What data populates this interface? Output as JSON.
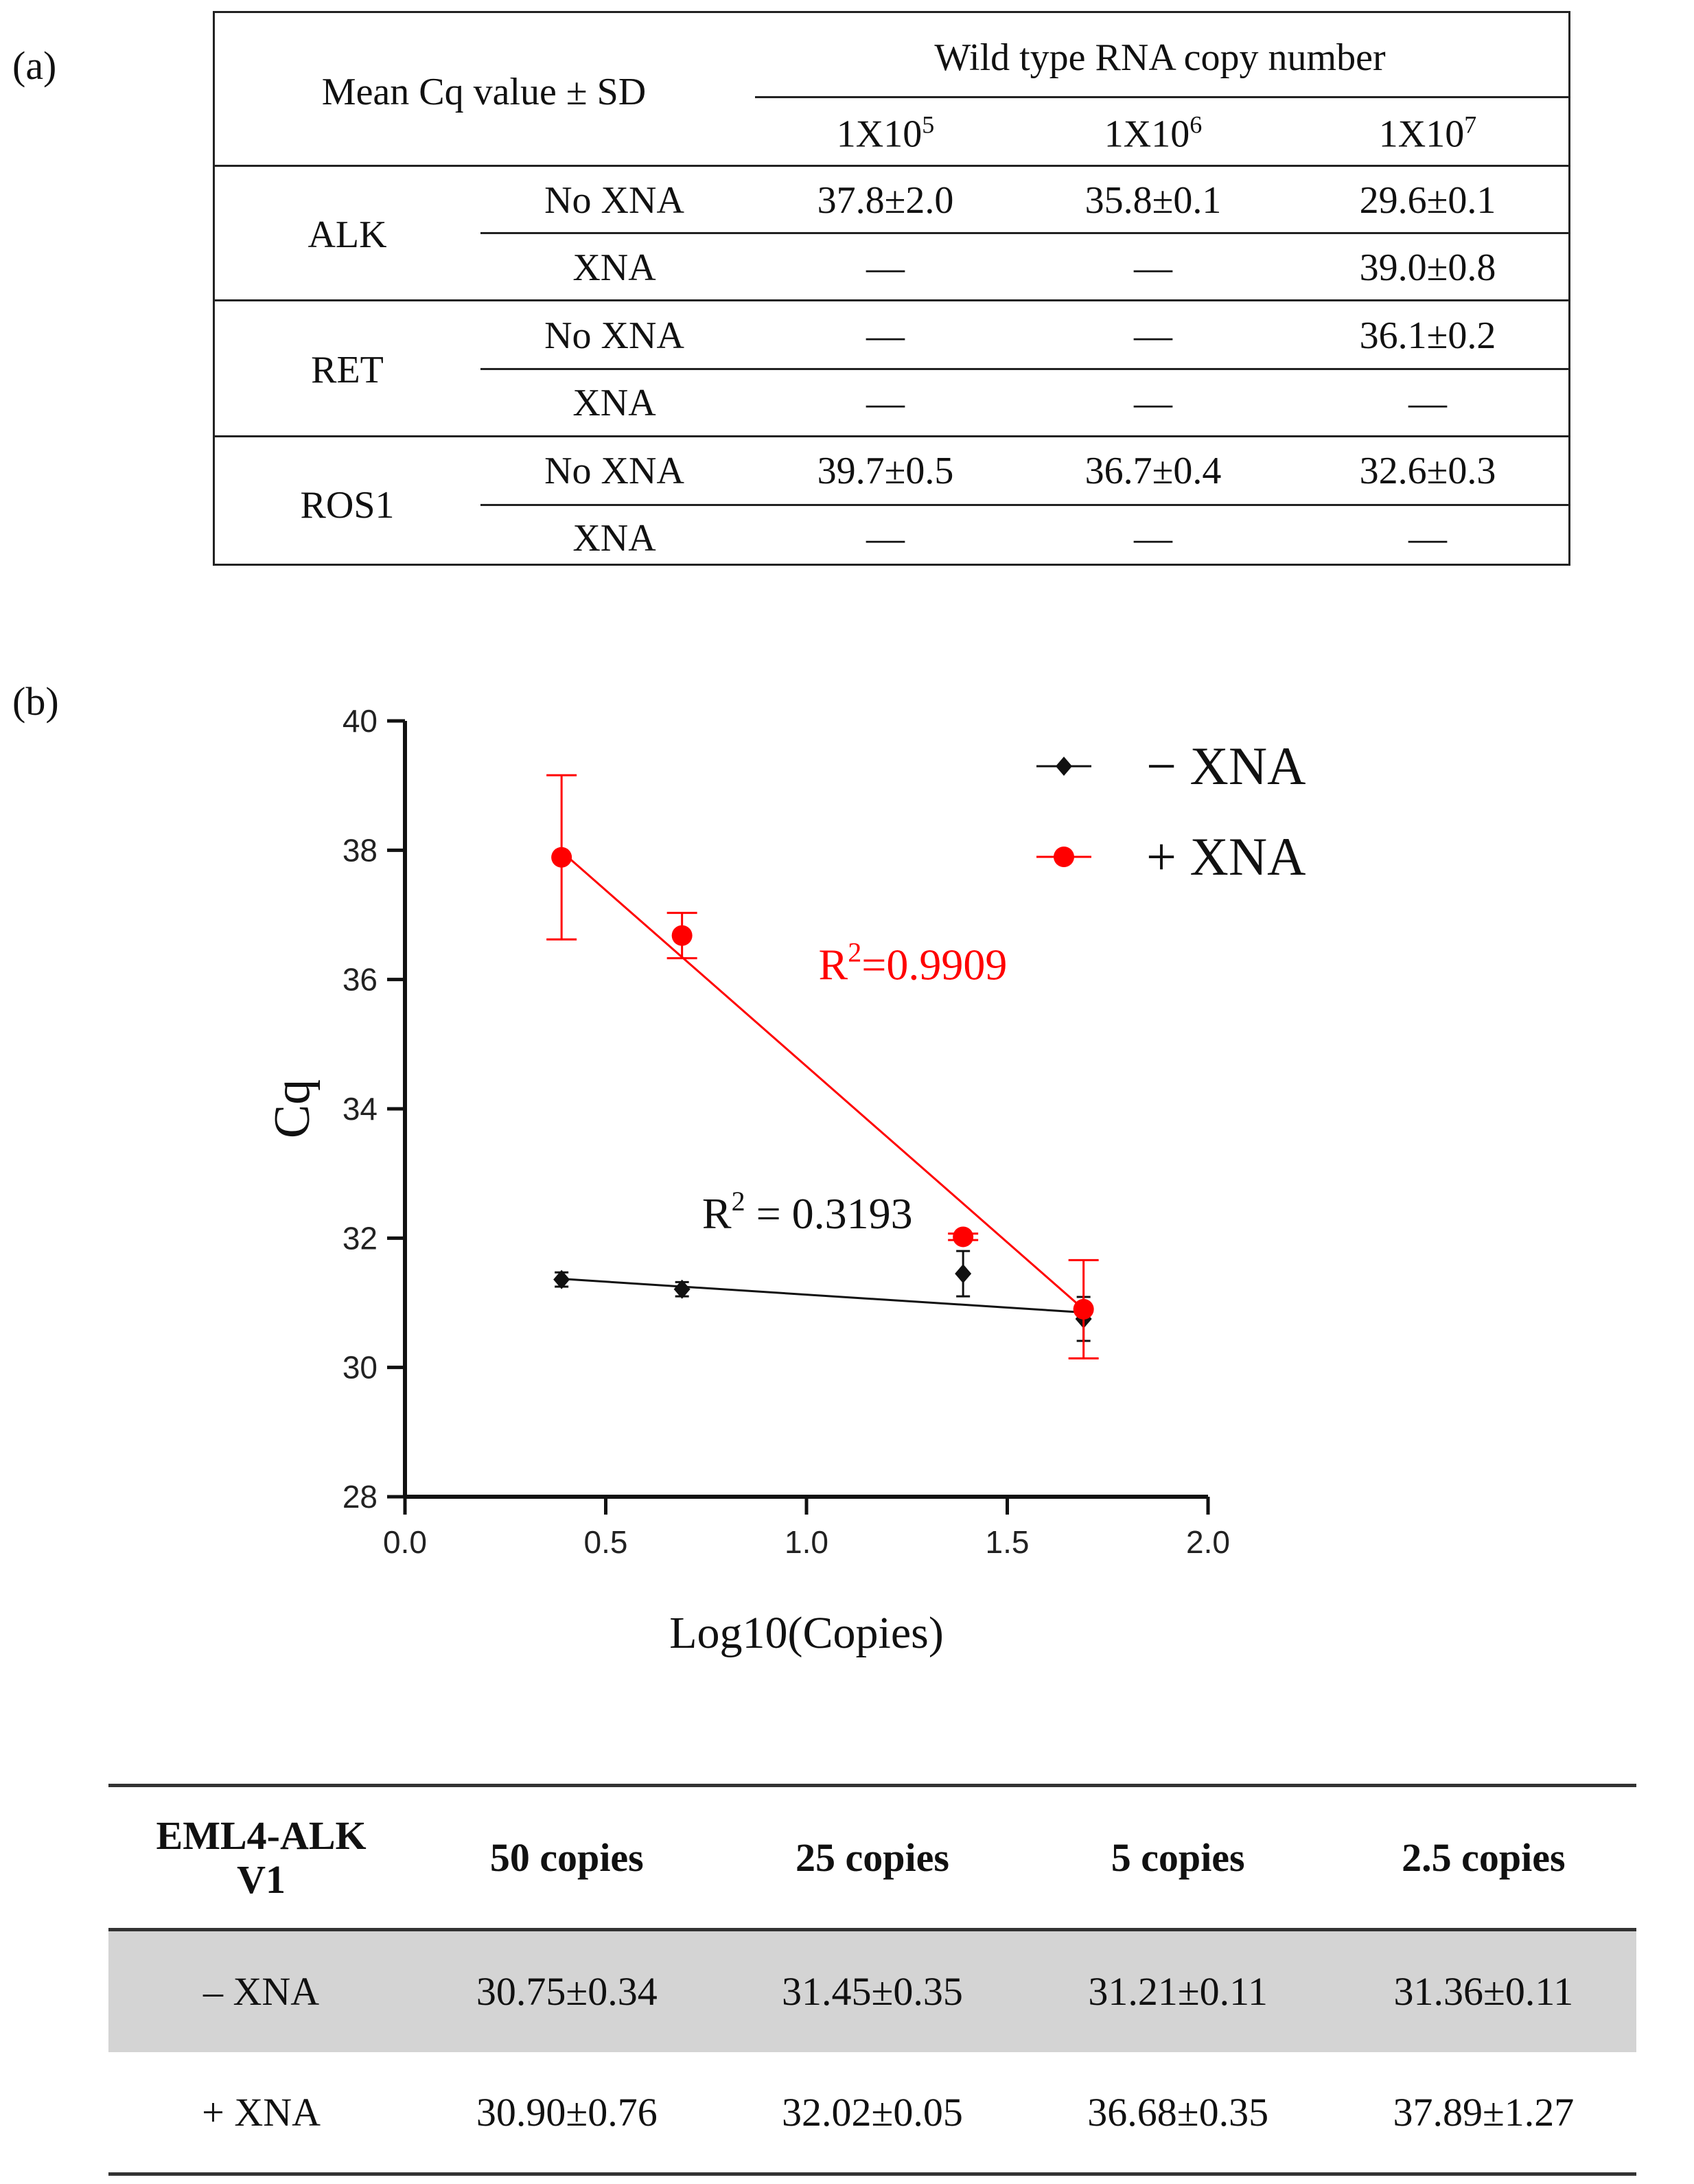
{
  "panel_a_label": "(a)",
  "panel_b_label": "(b)",
  "table_a": {
    "corner": "Mean Cq value  ± SD",
    "group_header": "Wild  type RNA copy number",
    "columns": [
      {
        "base": "1X10",
        "exp": "5"
      },
      {
        "base": "1X10",
        "exp": "6"
      },
      {
        "base": "1X10",
        "exp": "7"
      }
    ],
    "genes": [
      {
        "name": "ALK",
        "rows": [
          {
            "cond": "No XNA",
            "values": [
              "37.8±2.0",
              "35.8±0.1",
              "29.6±0.1"
            ]
          },
          {
            "cond": "XNA",
            "values": [
              "—",
              "—",
              "39.0±0.8"
            ]
          }
        ]
      },
      {
        "name": "RET",
        "rows": [
          {
            "cond": "No XNA",
            "values": [
              "—",
              "—",
              "36.1±0.2"
            ]
          },
          {
            "cond": "XNA",
            "values": [
              "—",
              "—",
              "—"
            ]
          }
        ]
      },
      {
        "name": "ROS1",
        "rows": [
          {
            "cond": "No XNA",
            "values": [
              "39.7±0.5",
              "36.7±0.4",
              "32.6±0.3"
            ]
          },
          {
            "cond": "XNA",
            "values": [
              "—",
              "—",
              "—"
            ]
          }
        ]
      }
    ]
  },
  "chart_data": {
    "type": "scatter",
    "xlabel": "Log10(Copies)",
    "ylabel": "Cq",
    "xlim": [
      0.0,
      2.0
    ],
    "ylim": [
      28,
      40
    ],
    "xticks": [
      "0.0",
      "0.5",
      "1.0",
      "1.5",
      "2.0"
    ],
    "yticks": [
      "28",
      "30",
      "32",
      "34",
      "36",
      "38",
      "40"
    ],
    "legend_position": "top-right",
    "series": [
      {
        "name": "− XNA",
        "color": "#111111",
        "marker": "diamond",
        "x": [
          0.39,
          0.69,
          1.39,
          1.69
        ],
        "y": [
          31.36,
          31.21,
          31.45,
          30.75
        ],
        "err": [
          0.11,
          0.11,
          0.35,
          0.34
        ],
        "fit": {
          "x": [
            0.39,
            1.69
          ],
          "y": [
            31.37,
            30.85
          ]
        },
        "r2_base": "R",
        "r2_sup": "2",
        "r2_rest": " = 0.3193"
      },
      {
        "name": "+ XNA",
        "color": "#ff0000",
        "marker": "circle",
        "x": [
          0.39,
          0.69,
          1.39,
          1.69
        ],
        "y": [
          37.89,
          36.68,
          32.02,
          30.9
        ],
        "err": [
          1.27,
          0.35,
          0.05,
          0.76
        ],
        "fit": {
          "x": [
            0.39,
            1.69
          ],
          "y": [
            37.98,
            30.9
          ]
        },
        "r2_base": "R",
        "r2_sup": "2",
        "r2_rest": "=0.9909"
      }
    ]
  },
  "table_c": {
    "headers": [
      "EML4-ALK\nV1",
      "50 copies",
      "25 copies",
      "5 copies",
      "2.5 copies"
    ],
    "rows": [
      [
        "– XNA",
        "30.75±0.34",
        "31.45±0.35",
        "31.21±0.11",
        "31.36±0.11"
      ],
      [
        "+ XNA",
        "30.90±0.76",
        "32.02±0.05",
        "36.68±0.35",
        "37.89±1.27"
      ]
    ]
  }
}
